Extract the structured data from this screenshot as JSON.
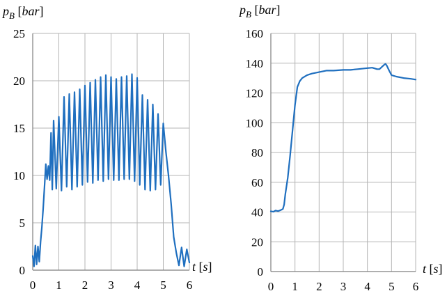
{
  "colors": {
    "series": "#1f6fbf",
    "grid": "#b4b4b4",
    "axis": "#7f7f7f"
  },
  "chart_data": [
    {
      "type": "line",
      "ylabel": {
        "var": "p",
        "sub": "B",
        "unit": "bar"
      },
      "xlabel": {
        "var": "t",
        "unit": "s"
      },
      "xlim": [
        0,
        6
      ],
      "ylim": [
        0,
        25
      ],
      "xticks": [
        "0",
        "1",
        "2",
        "3",
        "4",
        "5",
        "6"
      ],
      "yticks": [
        "0",
        "5",
        "10",
        "15",
        "20",
        "25"
      ],
      "grid": true,
      "series": [
        {
          "x": [
            0,
            0.05,
            0.1,
            0.15,
            0.2,
            0.25,
            0.3,
            0.35,
            0.4,
            0.45,
            0.5,
            0.55,
            0.6,
            0.65,
            0.7,
            0.75,
            0.8,
            0.9,
            1.0,
            1.1,
            1.2,
            1.3,
            1.4,
            1.5,
            1.6,
            1.7,
            1.8,
            1.9,
            2.0,
            2.1,
            2.2,
            2.3,
            2.4,
            2.5,
            2.6,
            2.7,
            2.8,
            2.9,
            3.0,
            3.1,
            3.2,
            3.3,
            3.4,
            3.5,
            3.6,
            3.7,
            3.8,
            3.9,
            4.0,
            4.1,
            4.2,
            4.3,
            4.4,
            4.5,
            4.6,
            4.7,
            4.8,
            4.9,
            5.0,
            5.1,
            5.2,
            5.3,
            5.4,
            5.5,
            5.6,
            5.7,
            5.8,
            5.9,
            6.0
          ],
          "y": [
            1.5,
            0.4,
            2.6,
            0.6,
            2.5,
            0.9,
            3.0,
            4.5,
            6.5,
            8.8,
            11.2,
            9.6,
            11.0,
            9.5,
            14.5,
            8.5,
            15.8,
            8.6,
            16.2,
            8.4,
            18.3,
            8.8,
            18.6,
            8.5,
            18.8,
            8.8,
            19.1,
            9.0,
            19.5,
            9.3,
            19.8,
            9.2,
            20.1,
            9.5,
            20.4,
            9.4,
            20.6,
            9.6,
            20.4,
            9.5,
            20.2,
            9.5,
            20.4,
            9.6,
            20.5,
            9.6,
            20.7,
            9.4,
            20.3,
            9.0,
            18.5,
            8.5,
            18.0,
            8.4,
            17.5,
            8.5,
            16.5,
            9.0,
            15.5,
            12.5,
            10.0,
            7.0,
            3.5,
            1.8,
            0.5,
            2.4,
            0.4,
            2.2,
            0.8
          ]
        }
      ]
    },
    {
      "type": "line",
      "ylabel": {
        "var": "p",
        "sub": "B",
        "unit": "bar"
      },
      "xlabel": {
        "var": "t",
        "unit": "s"
      },
      "xlim": [
        0,
        6
      ],
      "ylim": [
        0,
        160
      ],
      "xticks": [
        "0",
        "1",
        "2",
        "3",
        "4",
        "5",
        "6"
      ],
      "yticks": [
        "0",
        "20",
        "40",
        "60",
        "80",
        "100",
        "120",
        "140",
        "160"
      ],
      "grid": true,
      "series": [
        {
          "x": [
            0,
            0.1,
            0.2,
            0.3,
            0.4,
            0.5,
            0.55,
            0.6,
            0.7,
            0.8,
            0.9,
            1.0,
            1.05,
            1.1,
            1.2,
            1.3,
            1.5,
            1.7,
            2.0,
            2.3,
            2.6,
            3.0,
            3.3,
            3.6,
            3.9,
            4.2,
            4.4,
            4.5,
            4.6,
            4.7,
            4.75,
            4.8,
            4.9,
            5.0,
            5.2,
            5.5,
            5.8,
            6.0
          ],
          "y": [
            40.5,
            40.2,
            41.0,
            40.6,
            41.2,
            42.0,
            45,
            52,
            63,
            78,
            95,
            112,
            118,
            124,
            128,
            130,
            132,
            133,
            134,
            135,
            135,
            135.5,
            135.5,
            136,
            136.5,
            137,
            136,
            136,
            137.5,
            139,
            139.5,
            138.5,
            135,
            132,
            131,
            130,
            129.5,
            129
          ]
        }
      ]
    }
  ]
}
